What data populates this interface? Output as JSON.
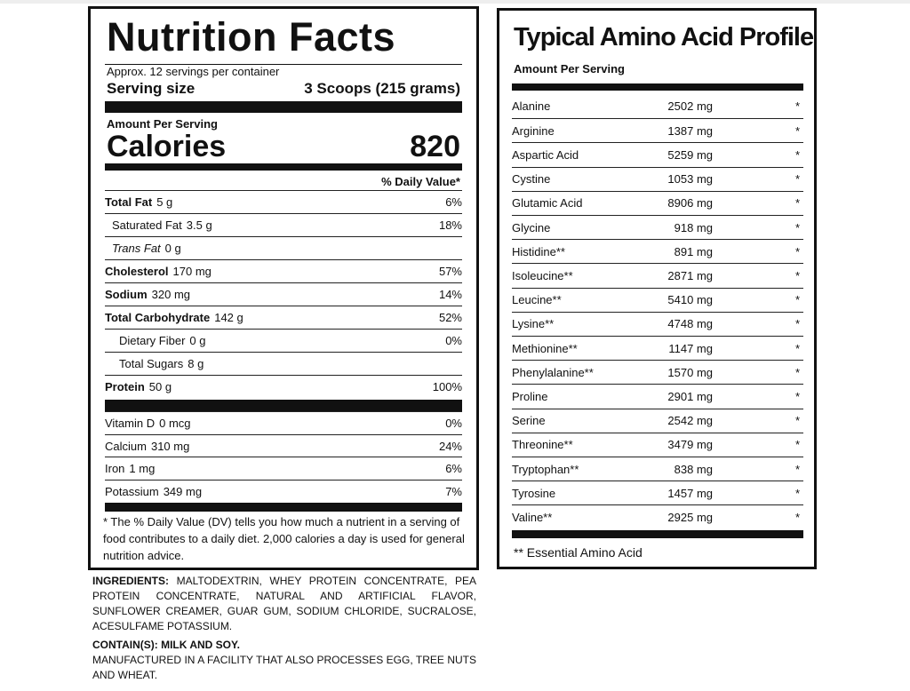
{
  "nutrition": {
    "title": "Nutrition Facts",
    "servings": "Approx. 12 servings per container",
    "serving_size_label": "Serving size",
    "serving_size": "3 Scoops (215 grams)",
    "amount_per_serving": "Amount Per Serving",
    "calories_label": "Calories",
    "calories": 820,
    "daily_value_header": "% Daily Value*",
    "rows": [
      {
        "name": "Total Fat",
        "amount": "5 g",
        "dv": "6%",
        "style": "bold"
      },
      {
        "name": "Saturated Fat",
        "amount": "3.5 g",
        "dv": "18%",
        "style": "indent"
      },
      {
        "name": "Trans Fat",
        "amount": "0 g",
        "style": "italic"
      },
      {
        "name": "Cholesterol",
        "amount": "170 mg",
        "dv": "57%",
        "style": "bold"
      },
      {
        "name": "Sodium",
        "amount": "320 mg",
        "dv": "14%",
        "style": "bold"
      },
      {
        "name": "Total Carbohydrate",
        "amount": "142 g",
        "dv": "52%",
        "style": "bold"
      },
      {
        "name": "Dietary Fiber",
        "amount": "0 g",
        "dv": "0%",
        "style": "indent2"
      },
      {
        "name": "Total Sugars",
        "amount": "8 g",
        "style": "indent2"
      },
      {
        "name": "Protein",
        "amount": "50 g",
        "dv": "100%",
        "style": "bold"
      }
    ],
    "vitamins": [
      {
        "name": "Vitamin D",
        "amount": "0 mcg",
        "dv": "0%"
      },
      {
        "name": "Calcium",
        "amount": "310 mg",
        "dv": "24%"
      },
      {
        "name": "Iron",
        "amount": "1 mg",
        "dv": "6%"
      },
      {
        "name": "Potassium",
        "amount": "349 mg",
        "dv": "7%"
      }
    ],
    "footnote": "* The % Daily Value (DV) tells you how much a nutrient in a serving of food contributes to a daily diet. 2,000 calories a day is used for general nutrition advice."
  },
  "ingredients": {
    "label": "INGREDIENTS:",
    "text": "MALTODEXTRIN, WHEY PROTEIN CONCENTRATE, PEA PROTEIN CONCENTRATE, NATURAL AND ARTIFICIAL FLAVOR, SUNFLOWER CREAMER, GUAR GUM, SODIUM CHLORIDE, SUCRALOSE, ACESULFAME POTASSIUM.",
    "contains": "CONTAIN(S): MILK AND SOY.",
    "facility": "MANUFACTURED IN A FACILITY THAT ALSO PROCESSES EGG, TREE NUTS AND WHEAT."
  },
  "amino": {
    "title": "Typical Amino Acid Profile",
    "amount_per_serving": "Amount Per Serving",
    "rows": [
      {
        "name": "Alanine",
        "amount": "2502 mg",
        "dv": "*"
      },
      {
        "name": "Arginine",
        "amount": "1387 mg",
        "dv": "*"
      },
      {
        "name": "Aspartic Acid",
        "amount": "5259 mg",
        "dv": "*"
      },
      {
        "name": "Cystine",
        "amount": "1053 mg",
        "dv": "*"
      },
      {
        "name": "Glutamic Acid",
        "amount": "8906 mg",
        "dv": "*"
      },
      {
        "name": "Glycine",
        "amount": "918 mg",
        "dv": "*"
      },
      {
        "name": "Histidine**",
        "amount": "891 mg",
        "dv": "*"
      },
      {
        "name": "Isoleucine**",
        "amount": "2871 mg",
        "dv": "*"
      },
      {
        "name": "Leucine**",
        "amount": "5410 mg",
        "dv": "*"
      },
      {
        "name": "Lysine**",
        "amount": "4748 mg",
        "dv": "*"
      },
      {
        "name": "Methionine**",
        "amount": "1147 mg",
        "dv": "*"
      },
      {
        "name": "Phenylalanine**",
        "amount": "1570 mg",
        "dv": "*"
      },
      {
        "name": "Proline",
        "amount": "2901 mg",
        "dv": "*"
      },
      {
        "name": "Serine",
        "amount": "2542 mg",
        "dv": "*"
      },
      {
        "name": "Threonine**",
        "amount": "3479 mg",
        "dv": "*"
      },
      {
        "name": "Tryptophan**",
        "amount": "838 mg",
        "dv": "*"
      },
      {
        "name": "Tyrosine",
        "amount": "1457 mg",
        "dv": "*"
      },
      {
        "name": "Valine**",
        "amount": "2925 mg",
        "dv": "*"
      }
    ],
    "footnote": "** Essential Amino Acid"
  }
}
